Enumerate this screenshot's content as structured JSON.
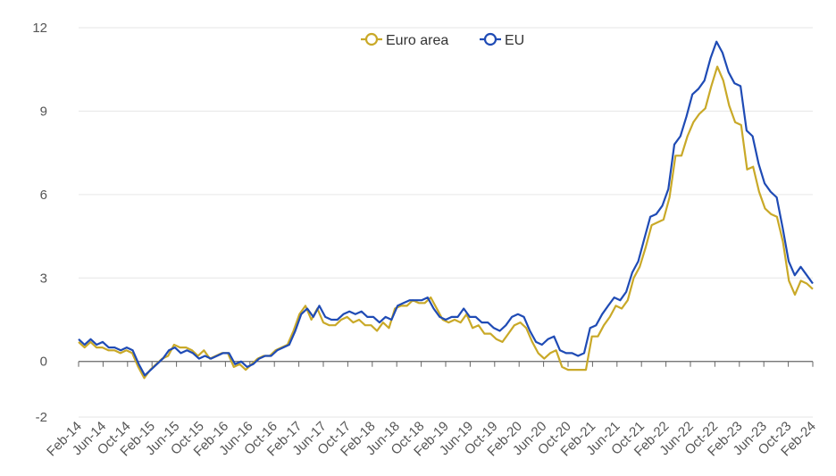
{
  "chart_data": {
    "type": "line",
    "title": "",
    "xlabel": "",
    "ylabel": "",
    "ylim": [
      -2,
      12
    ],
    "yticks": [
      "-2",
      "0",
      "3",
      "6",
      "9",
      "12"
    ],
    "grid": true,
    "legend_position": "top-center",
    "x_tick_labels": [
      "Feb-14",
      "Jun-14",
      "Oct-14",
      "Feb-15",
      "Jun-15",
      "Oct-15",
      "Feb-16",
      "Jun-16",
      "Oct-16",
      "Feb-17",
      "Jun-17",
      "Oct-17",
      "Feb-18",
      "Jun-18",
      "Oct-18",
      "Feb-19",
      "Jun-19",
      "Oct-19",
      "Feb-20",
      "Jun-20",
      "Oct-20",
      "Feb-21",
      "Jun-21",
      "Oct-21",
      "Feb-22",
      "Jun-22",
      "Oct-22",
      "Feb-23",
      "Jun-23",
      "Oct-23",
      "Feb-24"
    ],
    "x_start": "2014-02",
    "x_end": "2024-02",
    "series": [
      {
        "name": "Euro area",
        "color": "#C9A928",
        "values": [
          0.7,
          0.5,
          0.7,
          0.5,
          0.5,
          0.4,
          0.4,
          0.3,
          0.4,
          0.3,
          -0.2,
          -0.6,
          -0.3,
          -0.1,
          0.1,
          0.2,
          0.6,
          0.5,
          0.5,
          0.4,
          0.2,
          0.4,
          0.1,
          0.2,
          0.3,
          0.3,
          -0.2,
          -0.1,
          -0.3,
          -0.1,
          0.1,
          0.2,
          0.2,
          0.4,
          0.5,
          0.6,
          1.1,
          1.7,
          2.0,
          1.5,
          1.9,
          1.4,
          1.3,
          1.3,
          1.5,
          1.6,
          1.4,
          1.5,
          1.3,
          1.3,
          1.1,
          1.4,
          1.2,
          1.9,
          2.0,
          2.0,
          2.2,
          2.1,
          2.1,
          2.3,
          1.9,
          1.5,
          1.4,
          1.5,
          1.4,
          1.7,
          1.2,
          1.3,
          1.0,
          1.0,
          0.8,
          0.7,
          1.0,
          1.3,
          1.4,
          1.2,
          0.7,
          0.3,
          0.1,
          0.3,
          0.4,
          -0.2,
          -0.3,
          -0.3,
          -0.3,
          -0.3,
          0.9,
          0.9,
          1.3,
          1.6,
          2.0,
          1.9,
          2.2,
          3.0,
          3.4,
          4.1,
          4.9,
          5.0,
          5.1,
          5.9,
          7.4,
          7.4,
          8.1,
          8.6,
          8.9,
          9.1,
          9.9,
          10.6,
          10.1,
          9.2,
          8.6,
          8.5,
          6.9,
          7.0,
          6.1,
          5.5,
          5.3,
          5.2,
          4.3,
          2.9,
          2.4,
          2.9,
          2.8,
          2.6
        ]
      },
      {
        "name": "EU",
        "color": "#1F4BB5",
        "values": [
          0.8,
          0.6,
          0.8,
          0.6,
          0.7,
          0.5,
          0.5,
          0.4,
          0.5,
          0.4,
          -0.1,
          -0.5,
          -0.3,
          -0.1,
          0.1,
          0.4,
          0.5,
          0.3,
          0.4,
          0.3,
          0.1,
          0.2,
          0.1,
          0.2,
          0.3,
          0.3,
          -0.1,
          0.0,
          -0.2,
          -0.1,
          0.1,
          0.2,
          0.2,
          0.4,
          0.5,
          0.6,
          1.1,
          1.7,
          1.9,
          1.6,
          2.0,
          1.6,
          1.5,
          1.5,
          1.7,
          1.8,
          1.7,
          1.8,
          1.6,
          1.6,
          1.4,
          1.6,
          1.5,
          2.0,
          2.1,
          2.2,
          2.2,
          2.2,
          2.3,
          1.9,
          1.6,
          1.5,
          1.6,
          1.6,
          1.9,
          1.6,
          1.6,
          1.4,
          1.4,
          1.2,
          1.1,
          1.3,
          1.6,
          1.7,
          1.6,
          1.1,
          0.7,
          0.6,
          0.8,
          0.9,
          0.4,
          0.3,
          0.3,
          0.2,
          0.3,
          1.2,
          1.3,
          1.7,
          2.0,
          2.3,
          2.2,
          2.5,
          3.2,
          3.6,
          4.4,
          5.2,
          5.3,
          5.6,
          6.2,
          7.8,
          8.1,
          8.8,
          9.6,
          9.8,
          10.1,
          10.9,
          11.5,
          11.1,
          10.4,
          10.0,
          9.9,
          8.3,
          8.1,
          7.1,
          6.4,
          6.1,
          5.9,
          4.8,
          3.6,
          3.1,
          3.4,
          3.1,
          2.8
        ]
      }
    ]
  }
}
